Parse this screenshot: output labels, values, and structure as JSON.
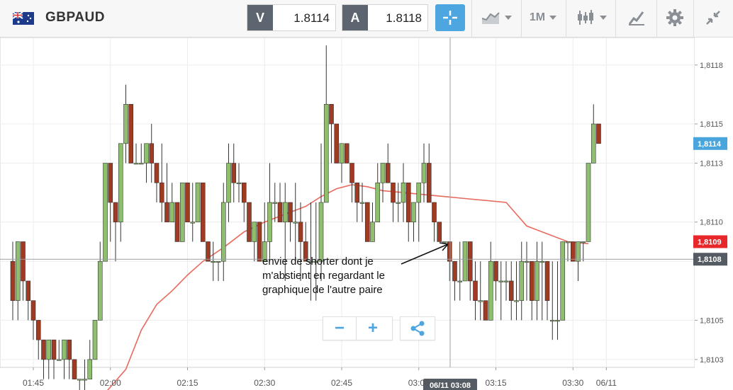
{
  "toolbar": {
    "symbol": "GBPAUD",
    "sell_label": "V",
    "sell_price": "1.8114",
    "buy_label": "A",
    "buy_price": "1.8118",
    "timeframe": "1M",
    "icons": [
      "flag-gb-au-icon",
      "crosshair-icon",
      "chart-type-icon",
      "candlestick-icon",
      "drawing-tools-icon",
      "gear-icon",
      "minimize-icon"
    ]
  },
  "annotation": {
    "text": "envie de shorter dont je\nm'abstient en regardant le\ngraphique de  l'autre paire"
  },
  "zoom": {
    "minus": "−",
    "plus": "+"
  },
  "colors": {
    "bull": "#8fbf6e",
    "bear": "#9e3b22",
    "ma": "#e86a5e",
    "price_tag_blue": "#4aa5dd",
    "price_tag_red": "#e8272a",
    "crosshair_tag": "#555b62"
  },
  "chart_data": {
    "type": "candlestick",
    "y_ticks": [
      "1,8118",
      "1,8115",
      "1,8113",
      "1,8110",
      "1,8108",
      "1,8105",
      "1,8103"
    ],
    "ylim": [
      1.81026,
      1.81194
    ],
    "x_ticks": [
      "01:45",
      "02:00",
      "02:15",
      "02:30",
      "02:45",
      "03:00",
      "03:15",
      "03:30",
      "06/11"
    ],
    "crosshair": {
      "time_label": "06/11 03:08",
      "price_label": "1,8108"
    },
    "price_tags": [
      {
        "label": "1,8114",
        "color": "blue"
      },
      {
        "label": "1,8109",
        "color": "red"
      }
    ],
    "candles": [
      [
        1.8108,
        1.8109,
        1.8105,
        1.8106
      ],
      [
        1.8106,
        1.8109,
        1.8105,
        1.8109
      ],
      [
        1.8109,
        1.8109,
        1.8106,
        1.8107
      ],
      [
        1.8107,
        1.8107,
        1.8105,
        1.8106
      ],
      [
        1.8106,
        1.8106,
        1.8104,
        1.8105
      ],
      [
        1.8105,
        1.8105,
        1.8103,
        1.8104
      ],
      [
        1.8104,
        1.8104,
        1.8102,
        1.8103
      ],
      [
        1.8103,
        1.8104,
        1.8102,
        1.8104
      ],
      [
        1.8104,
        1.8104,
        1.8102,
        1.8103
      ],
      [
        1.8103,
        1.8104,
        1.8103,
        1.8103
      ],
      [
        1.8103,
        1.8104,
        1.8102,
        1.8104
      ],
      [
        1.8104,
        1.8104,
        1.8102,
        1.8103
      ],
      [
        1.8103,
        1.8103,
        1.8102,
        1.8102
      ],
      [
        1.8102,
        1.8102,
        1.8101,
        1.8102
      ],
      [
        1.8102,
        1.8103,
        1.8101,
        1.8102
      ],
      [
        1.8102,
        1.8104,
        1.8102,
        1.8103
      ],
      [
        1.8103,
        1.8105,
        1.8103,
        1.8105
      ],
      [
        1.8105,
        1.8109,
        1.8105,
        1.8108
      ],
      [
        1.8108,
        1.8113,
        1.8108,
        1.8113
      ],
      [
        1.8113,
        1.8113,
        1.8109,
        1.8111
      ],
      [
        1.8111,
        1.8111,
        1.8108,
        1.811
      ],
      [
        1.811,
        1.8114,
        1.8109,
        1.8114
      ],
      [
        1.8114,
        1.8117,
        1.8113,
        1.8116
      ],
      [
        1.8116,
        1.8116,
        1.8113,
        1.8113
      ],
      [
        1.8113,
        1.8114,
        1.8113,
        1.8113
      ],
      [
        1.8113,
        1.8114,
        1.8113,
        1.8113
      ],
      [
        1.8113,
        1.8114,
        1.8112,
        1.8114
      ],
      [
        1.8114,
        1.8115,
        1.8112,
        1.8113
      ],
      [
        1.8113,
        1.8113,
        1.8111,
        1.8112
      ],
      [
        1.8112,
        1.8114,
        1.811,
        1.8111
      ],
      [
        1.8111,
        1.8113,
        1.811,
        1.811
      ],
      [
        1.811,
        1.8112,
        1.811,
        1.8111
      ],
      [
        1.8111,
        1.8111,
        1.8109,
        1.8109
      ],
      [
        1.8109,
        1.8112,
        1.8109,
        1.8112
      ],
      [
        1.8112,
        1.8112,
        1.811,
        1.811
      ],
      [
        1.811,
        1.8112,
        1.8109,
        1.811
      ],
      [
        1.811,
        1.8112,
        1.811,
        1.8112
      ],
      [
        1.8112,
        1.8112,
        1.8109,
        1.8109
      ],
      [
        1.8109,
        1.8109,
        1.8108,
        1.8108
      ],
      [
        1.8108,
        1.8109,
        1.8107,
        1.8108
      ],
      [
        1.8108,
        1.8108,
        1.8107,
        1.8108
      ],
      [
        1.8108,
        1.8112,
        1.8107,
        1.8111
      ],
      [
        1.8111,
        1.8114,
        1.811,
        1.8113
      ],
      [
        1.8113,
        1.8114,
        1.8111,
        1.8112
      ],
      [
        1.8112,
        1.8113,
        1.8111,
        1.8112
      ],
      [
        1.8112,
        1.8112,
        1.811,
        1.8111
      ],
      [
        1.8111,
        1.8111,
        1.8109,
        1.8109
      ],
      [
        1.8109,
        1.811,
        1.8108,
        1.811
      ],
      [
        1.811,
        1.811,
        1.8108,
        1.8108
      ],
      [
        1.8108,
        1.8111,
        1.8108,
        1.8109
      ],
      [
        1.8109,
        1.8113,
        1.8108,
        1.8111
      ],
      [
        1.8111,
        1.8112,
        1.811,
        1.8111
      ],
      [
        1.8111,
        1.8112,
        1.811,
        1.811
      ],
      [
        1.811,
        1.8112,
        1.8107,
        1.8111
      ],
      [
        1.8111,
        1.8111,
        1.8109,
        1.811
      ],
      [
        1.811,
        1.8112,
        1.8108,
        1.811
      ],
      [
        1.811,
        1.8111,
        1.8107,
        1.8109
      ],
      [
        1.8109,
        1.811,
        1.8108,
        1.8108
      ],
      [
        1.8108,
        1.8111,
        1.8106,
        1.8108
      ],
      [
        1.8108,
        1.8111,
        1.8106,
        1.8108
      ],
      [
        1.8108,
        1.8114,
        1.8107,
        1.8111
      ],
      [
        1.8111,
        1.8119,
        1.8111,
        1.8116
      ],
      [
        1.8116,
        1.8116,
        1.8113,
        1.8115
      ],
      [
        1.8115,
        1.8115,
        1.8113,
        1.8113
      ],
      [
        1.8113,
        1.8114,
        1.8112,
        1.8114
      ],
      [
        1.8114,
        1.8114,
        1.8113,
        1.8113
      ],
      [
        1.8113,
        1.8113,
        1.8111,
        1.8112
      ],
      [
        1.8112,
        1.8112,
        1.811,
        1.8111
      ],
      [
        1.8111,
        1.8112,
        1.811,
        1.8111
      ],
      [
        1.8111,
        1.8111,
        1.8109,
        1.8109
      ],
      [
        1.8109,
        1.8111,
        1.8109,
        1.811
      ],
      [
        1.811,
        1.8113,
        1.811,
        1.8112
      ],
      [
        1.8112,
        1.8113,
        1.8111,
        1.8113
      ],
      [
        1.8113,
        1.8114,
        1.8112,
        1.8112
      ],
      [
        1.8112,
        1.8112,
        1.811,
        1.8111
      ],
      [
        1.8111,
        1.8112,
        1.811,
        1.8111
      ],
      [
        1.8111,
        1.8113,
        1.811,
        1.8112
      ],
      [
        1.8112,
        1.8112,
        1.8109,
        1.811
      ],
      [
        1.811,
        1.8111,
        1.8109,
        1.8111
      ],
      [
        1.8111,
        1.8112,
        1.8109,
        1.8112
      ],
      [
        1.8112,
        1.8114,
        1.8111,
        1.8113
      ],
      [
        1.8113,
        1.8114,
        1.8111,
        1.8111
      ],
      [
        1.8111,
        1.8111,
        1.8109,
        1.811
      ],
      [
        1.811,
        1.811,
        1.8109,
        1.8109
      ],
      [
        1.8109,
        1.8109,
        1.8109,
        1.8109
      ],
      [
        1.8109,
        1.8109,
        1.8107,
        1.8108
      ],
      [
        1.8108,
        1.8108,
        1.8106,
        1.8107
      ],
      [
        1.8107,
        1.8109,
        1.8106,
        1.8107
      ],
      [
        1.8107,
        1.8109,
        1.8107,
        1.8109
      ],
      [
        1.8109,
        1.8109,
        1.8106,
        1.8107
      ],
      [
        1.8107,
        1.8108,
        1.8105,
        1.8106
      ],
      [
        1.8106,
        1.8108,
        1.8105,
        1.8106
      ],
      [
        1.8106,
        1.8106,
        1.8105,
        1.8105
      ],
      [
        1.8105,
        1.8109,
        1.8105,
        1.8108
      ],
      [
        1.8108,
        1.8108,
        1.8106,
        1.8107
      ],
      [
        1.8107,
        1.8108,
        1.8105,
        1.8107
      ],
      [
        1.8107,
        1.8108,
        1.8106,
        1.8107
      ],
      [
        1.8107,
        1.8108,
        1.8105,
        1.8106
      ],
      [
        1.8106,
        1.8108,
        1.8105,
        1.8106
      ],
      [
        1.8106,
        1.8109,
        1.8105,
        1.8108
      ],
      [
        1.8108,
        1.8109,
        1.8106,
        1.8108
      ],
      [
        1.8108,
        1.8108,
        1.8105,
        1.8106
      ],
      [
        1.8106,
        1.8109,
        1.8105,
        1.8108
      ],
      [
        1.8108,
        1.8109,
        1.8105,
        1.8108
      ],
      [
        1.8108,
        1.8108,
        1.8105,
        1.8106
      ],
      [
        1.8105,
        1.8108,
        1.8104,
        1.8105
      ],
      [
        1.8105,
        1.8108,
        1.8104,
        1.8105
      ],
      [
        1.8105,
        1.8109,
        1.8105,
        1.8109
      ],
      [
        1.8109,
        1.8109,
        1.8108,
        1.8109
      ],
      [
        1.8109,
        1.8109,
        1.8108,
        1.8108
      ],
      [
        1.8108,
        1.8109,
        1.8107,
        1.8109
      ],
      [
        1.8109,
        1.8109,
        1.8108,
        1.8109
      ],
      [
        1.8109,
        1.8113,
        1.8109,
        1.8113
      ],
      [
        1.8113,
        1.8116,
        1.8113,
        1.8115
      ],
      [
        1.8115,
        1.8115,
        1.8114,
        1.8114
      ]
    ],
    "moving_average": [
      [
        17,
        1.8101
      ],
      [
        22,
        1.81025
      ],
      [
        25,
        1.81045
      ],
      [
        28,
        1.81058
      ],
      [
        31,
        1.81065
      ],
      [
        34,
        1.81073
      ],
      [
        37,
        1.8108
      ],
      [
        41,
        1.81087
      ],
      [
        45,
        1.81095
      ],
      [
        49,
        1.811
      ],
      [
        53,
        1.81104
      ],
      [
        57,
        1.81108
      ],
      [
        60,
        1.81113
      ],
      [
        63,
        1.81117
      ],
      [
        66,
        1.81119
      ],
      [
        69,
        1.81118
      ],
      [
        72,
        1.81116
      ],
      [
        76,
        1.81115
      ],
      [
        80,
        1.81114
      ],
      [
        84,
        1.81113
      ],
      [
        88,
        1.81112
      ],
      [
        92,
        1.81111
      ],
      [
        96,
        1.8111
      ],
      [
        100,
        1.81098
      ],
      [
        104,
        1.81094
      ],
      [
        108,
        1.8109
      ],
      [
        112,
        1.81089
      ]
    ]
  }
}
